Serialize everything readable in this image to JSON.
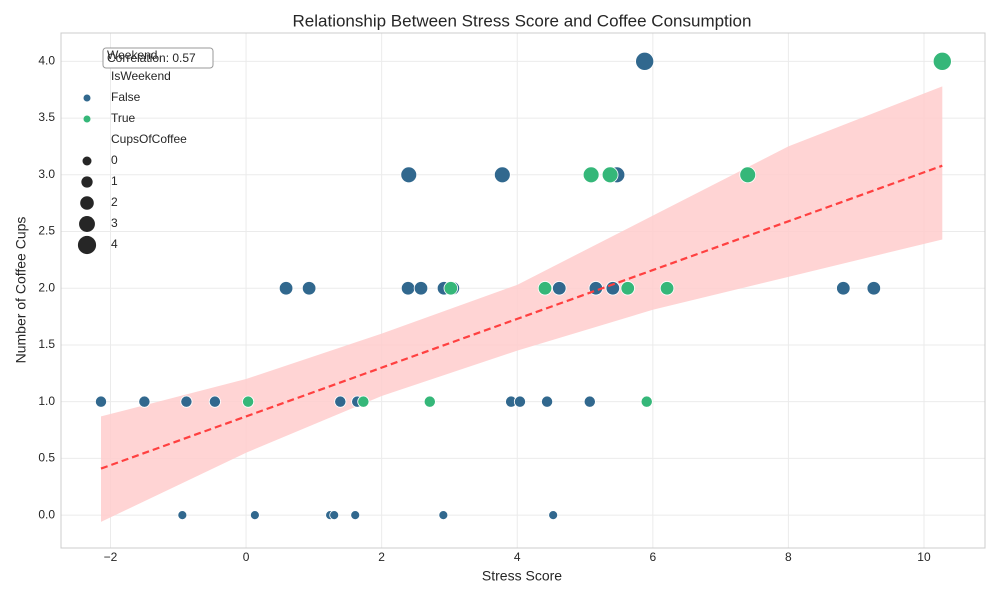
{
  "chart_data": {
    "type": "scatter",
    "title": "Relationship Between Stress Score and Coffee Consumption",
    "x_label": "Stress Score",
    "y_label": "Number of Coffee Cups",
    "xlim": [
      -2.73,
      10.9
    ],
    "ylim": [
      -0.29,
      4.25
    ],
    "xticks": [
      {
        "value": -2,
        "label": "−2"
      },
      0,
      2,
      4,
      6,
      8,
      10
    ],
    "yticks": [
      {
        "value": 0,
        "label": "0.0"
      },
      {
        "value": 0.5,
        "label": "0.5"
      },
      {
        "value": 1,
        "label": "1.0"
      },
      {
        "value": 1.5,
        "label": "1.5"
      },
      {
        "value": 2,
        "label": "2.0"
      },
      {
        "value": 2.5,
        "label": "2.5"
      },
      {
        "value": 3,
        "label": "3.0"
      },
      {
        "value": 3.5,
        "label": "3.5"
      },
      {
        "value": 4,
        "label": "4.0"
      }
    ],
    "grid": true,
    "legend_title": "Weekend",
    "hue_title": "IsWeekend",
    "annotation": "Correlation: 0.57",
    "series": [
      {
        "name": "False",
        "color": "#31688e",
        "x": [
          5.88,
          2.4,
          3.78,
          5.47,
          0.59,
          0.93,
          2.39,
          2.58,
          2.92,
          3.05,
          8.81,
          9.26,
          4.62,
          5.16,
          5.41,
          -2.14,
          -1.5,
          -0.88,
          -0.46,
          1.39,
          1.64,
          3.91,
          4.04,
          4.44,
          5.07,
          -0.94,
          0.13,
          1.24,
          1.3,
          1.61,
          2.91,
          4.53
        ],
        "values": [
          4,
          3,
          3,
          3,
          2,
          2,
          2,
          2,
          2,
          2,
          2,
          2,
          2,
          2,
          2,
          1,
          1,
          1,
          1,
          1,
          1,
          1,
          1,
          1,
          1,
          0,
          0,
          0,
          0,
          0,
          0,
          0
        ],
        "sizes": [
          4,
          3,
          3,
          3,
          2,
          2,
          2,
          2,
          2,
          2,
          2,
          2,
          2,
          2,
          2,
          1,
          1,
          1,
          1,
          1,
          1,
          1,
          1,
          1,
          1,
          0,
          0,
          0,
          0,
          0,
          0,
          0
        ]
      },
      {
        "name": "True",
        "color": "#35b779",
        "x": [
          10.27,
          5.09,
          5.37,
          7.4,
          3.02,
          4.41,
          5.63,
          6.21,
          0.03,
          1.73,
          2.71,
          5.91
        ],
        "values": [
          4,
          3,
          3,
          3,
          2,
          2,
          2,
          2,
          1,
          1,
          1,
          1
        ],
        "sizes": [
          4,
          3,
          3,
          3,
          2,
          2,
          2,
          2,
          1,
          1,
          1,
          1
        ]
      }
    ],
    "size_legend": {
      "title": "CupsOfCoffee",
      "values": [
        0,
        1,
        2,
        3,
        4
      ]
    },
    "regression": {
      "color": "#ff4040",
      "band_color": "#ffcccc",
      "x": [
        -2.14,
        0,
        2,
        4,
        6,
        8,
        10.27
      ],
      "y": [
        0.41,
        0.87,
        1.3,
        1.73,
        2.16,
        2.59,
        3.08
      ],
      "lower": [
        -0.06,
        0.55,
        1.05,
        1.45,
        1.81,
        2.1,
        2.43
      ],
      "upper": [
        0.87,
        1.2,
        1.6,
        2.03,
        2.64,
        3.25,
        3.78
      ]
    }
  }
}
